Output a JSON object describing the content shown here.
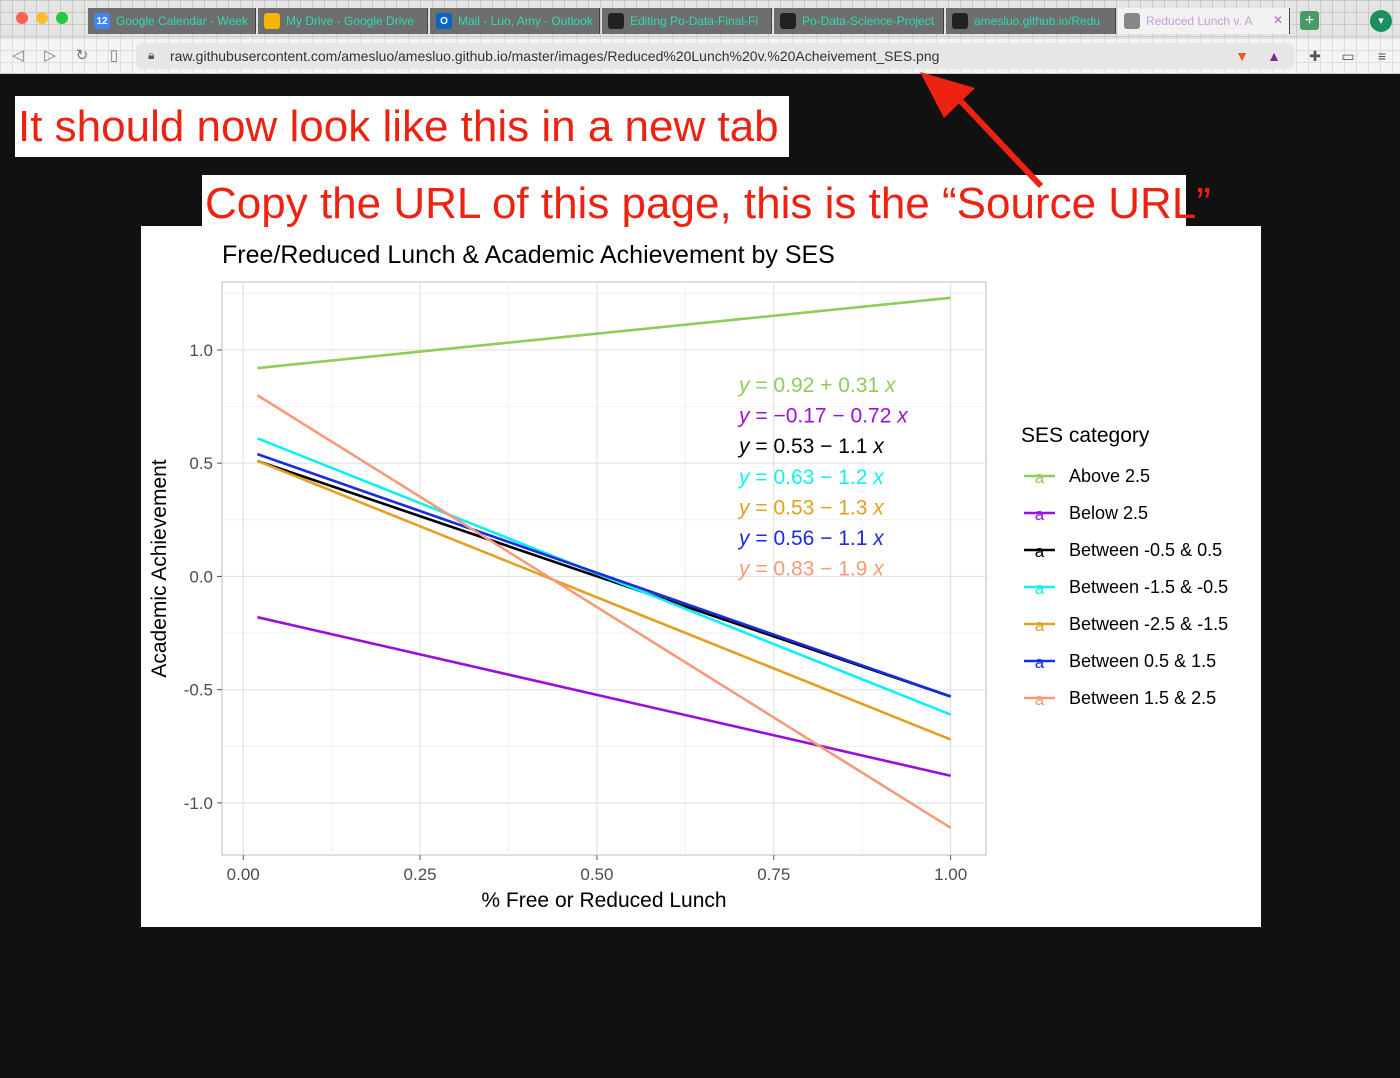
{
  "tabs": [
    {
      "label": "Google Calendar - Week",
      "icon": "google-calendar-icon",
      "icon_text": "12",
      "icon_color": "#4285f4"
    },
    {
      "label": "My Drive - Google Drive",
      "icon": "google-drive-icon",
      "icon_text": "",
      "icon_color": "#f4b400"
    },
    {
      "label": "Mail - Luo, Amy - Outlook",
      "icon": "outlook-icon",
      "icon_text": "O",
      "icon_color": "#0a64c8"
    },
    {
      "label": "Editing Po-Data-Final-Fi",
      "icon": "github-icon",
      "icon_text": "",
      "icon_color": "#222222"
    },
    {
      "label": "Po-Data-Science-Project",
      "icon": "github-icon",
      "icon_text": "",
      "icon_color": "#222222"
    },
    {
      "label": "amesluo.github.io/Redu",
      "icon": "github-icon",
      "icon_text": "",
      "icon_color": "#222222"
    },
    {
      "label": "Reduced Lunch v. A",
      "icon": "globe-icon",
      "icon_text": "",
      "icon_color": "#888888",
      "active": true
    }
  ],
  "address_bar": {
    "url": "raw.githubusercontent.com/amesluo/amesluo.github.io/master/images/Reduced%20Lunch%20v.%20Acheivement_SES.png"
  },
  "annotations": {
    "callout_1": "It should now look like this in a new tab",
    "callout_2": "Copy the URL of this page, this is the “Source URL”",
    "annotation_color": "#ee2211"
  },
  "chart_data": {
    "type": "line",
    "title": "Free/Reduced Lunch & Academic Achievement by SES",
    "xlabel": "% Free or Reduced Lunch",
    "ylabel": "Academic Achievement",
    "xlim": [
      -0.03,
      1.05
    ],
    "ylim": [
      -1.23,
      1.3
    ],
    "x_ticks": [
      0.0,
      0.25,
      0.5,
      0.75,
      1.0
    ],
    "x_tick_labels": [
      "0.00",
      "0.25",
      "0.50",
      "0.75",
      "1.00"
    ],
    "y_ticks": [
      -1.0,
      -0.5,
      0.0,
      0.5,
      1.0
    ],
    "y_tick_labels": [
      "-1.0",
      "-0.5",
      "0.0",
      "0.5",
      "1.0"
    ],
    "grid": true,
    "legend_title": "SES category",
    "legend_position": "right",
    "series": [
      {
        "name": "Above 2.5",
        "color": "#8fcc5a",
        "x": [
          0.02,
          1.0
        ],
        "y": [
          0.92,
          1.23
        ],
        "equation": {
          "intercept": "0.92",
          "op": "+",
          "slope": "0.31"
        }
      },
      {
        "name": "Below 2.5",
        "color": "#9a10d8",
        "x": [
          0.02,
          1.0
        ],
        "y": [
          -0.18,
          -0.88
        ],
        "equation": {
          "intercept": "−0.17",
          "op": "−",
          "slope": "0.72"
        }
      },
      {
        "name": "Between -0.5 & 0.5",
        "color": "#000000",
        "x": [
          0.02,
          1.0
        ],
        "y": [
          0.51,
          -0.53
        ],
        "equation": {
          "intercept": "0.53",
          "op": "−",
          "slope": "1.1"
        }
      },
      {
        "name": "Between -1.5 & -0.5",
        "color": "#10f0f0",
        "x": [
          0.02,
          1.0
        ],
        "y": [
          0.61,
          -0.61
        ],
        "equation": {
          "intercept": "0.63",
          "op": "−",
          "slope": "1.2"
        }
      },
      {
        "name": "Between -2.5 & -1.5",
        "color": "#e2a022",
        "x": [
          0.02,
          1.0
        ],
        "y": [
          0.51,
          -0.72
        ],
        "equation": {
          "intercept": "0.53",
          "op": "−",
          "slope": "1.3"
        }
      },
      {
        "name": "Between 0.5 & 1.5",
        "color": "#1a2ce0",
        "x": [
          0.02,
          1.0
        ],
        "y": [
          0.54,
          -0.53
        ],
        "equation": {
          "intercept": "0.56",
          "op": "−",
          "slope": "1.1"
        }
      },
      {
        "name": "Between 1.5 & 2.5",
        "color": "#f79a78",
        "x": [
          0.02,
          1.0
        ],
        "y": [
          0.8,
          -1.11
        ],
        "equation": {
          "intercept": "0.83",
          "op": "−",
          "slope": "1.9"
        }
      }
    ]
  }
}
